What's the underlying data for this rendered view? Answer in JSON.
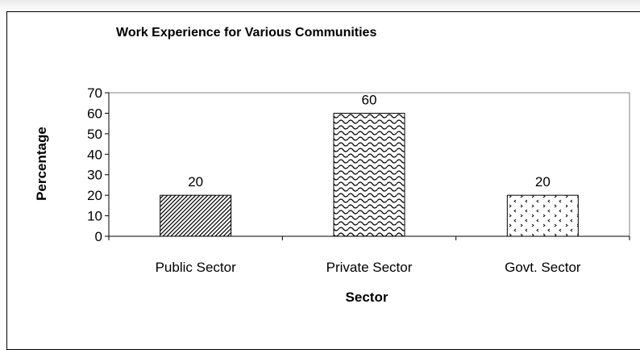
{
  "chart_data": {
    "type": "bar",
    "title": "Work Experience for Various Communities",
    "xlabel": "Sector",
    "ylabel": "Percentage",
    "categories": [
      "Public Sector",
      "Private Sector",
      "Govt. Sector"
    ],
    "values": [
      20,
      60,
      20
    ],
    "data_labels": [
      "20",
      "60",
      "20"
    ],
    "ylim": [
      0,
      70
    ],
    "yticks": [
      0,
      10,
      20,
      30,
      40,
      50,
      60,
      70
    ],
    "patterns": [
      "diagonal-hatch",
      "wave",
      "dotted-confetti"
    ],
    "grid": false,
    "legend": "none"
  }
}
